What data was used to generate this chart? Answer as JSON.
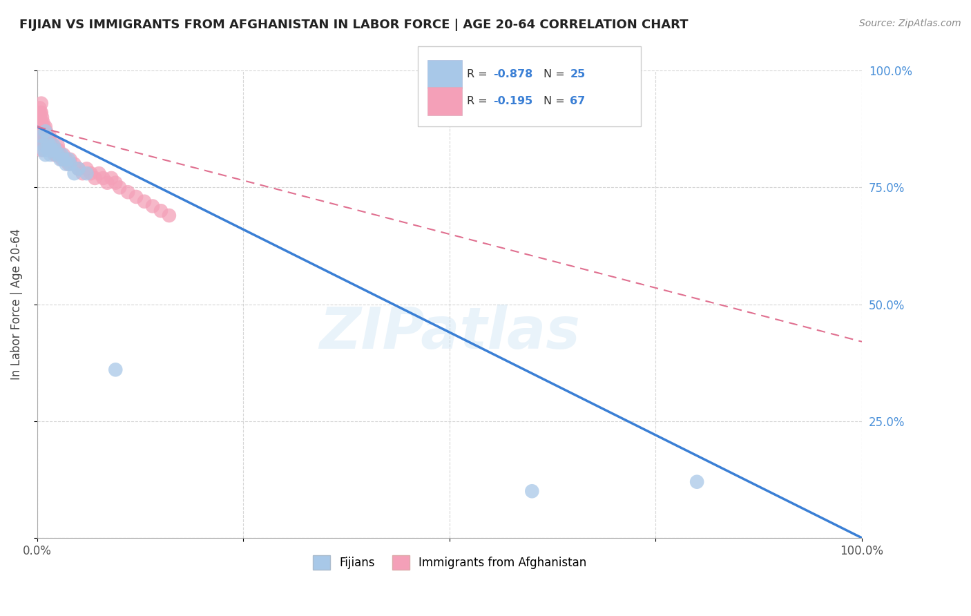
{
  "title": "FIJIAN VS IMMIGRANTS FROM AFGHANISTAN IN LABOR FORCE | AGE 20-64 CORRELATION CHART",
  "source": "Source: ZipAtlas.com",
  "ylabel": "In Labor Force | Age 20-64",
  "xlim": [
    0.0,
    1.0
  ],
  "ylim": [
    0.0,
    1.0
  ],
  "xticks": [
    0.0,
    0.25,
    0.5,
    0.75,
    1.0
  ],
  "yticks": [
    0.0,
    0.25,
    0.5,
    0.75,
    1.0
  ],
  "xticklabels": [
    "0.0%",
    "",
    "",
    "",
    "100.0%"
  ],
  "yticklabels_right": [
    "",
    "25.0%",
    "50.0%",
    "75.0%",
    "100.0%"
  ],
  "legend_labels": [
    "Fijians",
    "Immigrants from Afghanistan"
  ],
  "fijian_R": -0.878,
  "fijian_N": 25,
  "afghanistan_R": -0.195,
  "afghanistan_N": 67,
  "fijian_color": "#a8c8e8",
  "afghanistan_color": "#f4a0b8",
  "fijian_line_color": "#3a7fd5",
  "afghanistan_line_color": "#e07090",
  "fijian_line_x0": 0.0,
  "fijian_line_y0": 0.88,
  "fijian_line_x1": 1.0,
  "fijian_line_y1": 0.0,
  "afghanistan_line_x0": 0.0,
  "afghanistan_line_y0": 0.88,
  "afghanistan_line_x1": 1.0,
  "afghanistan_line_y1": 0.42,
  "watermark": "ZIPatlas",
  "fijian_x": [
    0.005,
    0.007,
    0.008,
    0.01,
    0.01,
    0.012,
    0.013,
    0.015,
    0.016,
    0.018,
    0.02,
    0.022,
    0.025,
    0.028,
    0.03,
    0.032,
    0.035,
    0.038,
    0.04,
    0.045,
    0.05,
    0.06,
    0.095,
    0.6,
    0.8
  ],
  "fijian_y": [
    0.86,
    0.84,
    0.83,
    0.87,
    0.82,
    0.85,
    0.83,
    0.84,
    0.82,
    0.83,
    0.84,
    0.83,
    0.82,
    0.81,
    0.82,
    0.81,
    0.8,
    0.81,
    0.8,
    0.78,
    0.79,
    0.78,
    0.36,
    0.1,
    0.12
  ],
  "afghanistan_x": [
    0.003,
    0.003,
    0.003,
    0.004,
    0.004,
    0.004,
    0.004,
    0.005,
    0.005,
    0.005,
    0.005,
    0.005,
    0.005,
    0.006,
    0.006,
    0.007,
    0.007,
    0.007,
    0.008,
    0.008,
    0.009,
    0.009,
    0.01,
    0.01,
    0.01,
    0.011,
    0.011,
    0.012,
    0.012,
    0.013,
    0.014,
    0.015,
    0.015,
    0.016,
    0.017,
    0.018,
    0.019,
    0.02,
    0.021,
    0.022,
    0.023,
    0.025,
    0.026,
    0.028,
    0.03,
    0.032,
    0.035,
    0.038,
    0.04,
    0.045,
    0.05,
    0.055,
    0.06,
    0.065,
    0.07,
    0.075,
    0.08,
    0.085,
    0.09,
    0.095,
    0.1,
    0.11,
    0.12,
    0.13,
    0.14,
    0.15,
    0.16
  ],
  "afghanistan_y": [
    0.92,
    0.9,
    0.88,
    0.91,
    0.89,
    0.87,
    0.85,
    0.93,
    0.91,
    0.89,
    0.87,
    0.85,
    0.83,
    0.9,
    0.88,
    0.89,
    0.87,
    0.85,
    0.88,
    0.86,
    0.87,
    0.85,
    0.88,
    0.86,
    0.84,
    0.87,
    0.85,
    0.86,
    0.84,
    0.85,
    0.84,
    0.86,
    0.84,
    0.85,
    0.84,
    0.83,
    0.84,
    0.83,
    0.82,
    0.83,
    0.82,
    0.84,
    0.83,
    0.82,
    0.81,
    0.82,
    0.81,
    0.8,
    0.81,
    0.8,
    0.79,
    0.78,
    0.79,
    0.78,
    0.77,
    0.78,
    0.77,
    0.76,
    0.77,
    0.76,
    0.75,
    0.74,
    0.73,
    0.72,
    0.71,
    0.7,
    0.69
  ],
  "title_fontsize": 13,
  "axis_label_fontsize": 12,
  "tick_fontsize": 12
}
